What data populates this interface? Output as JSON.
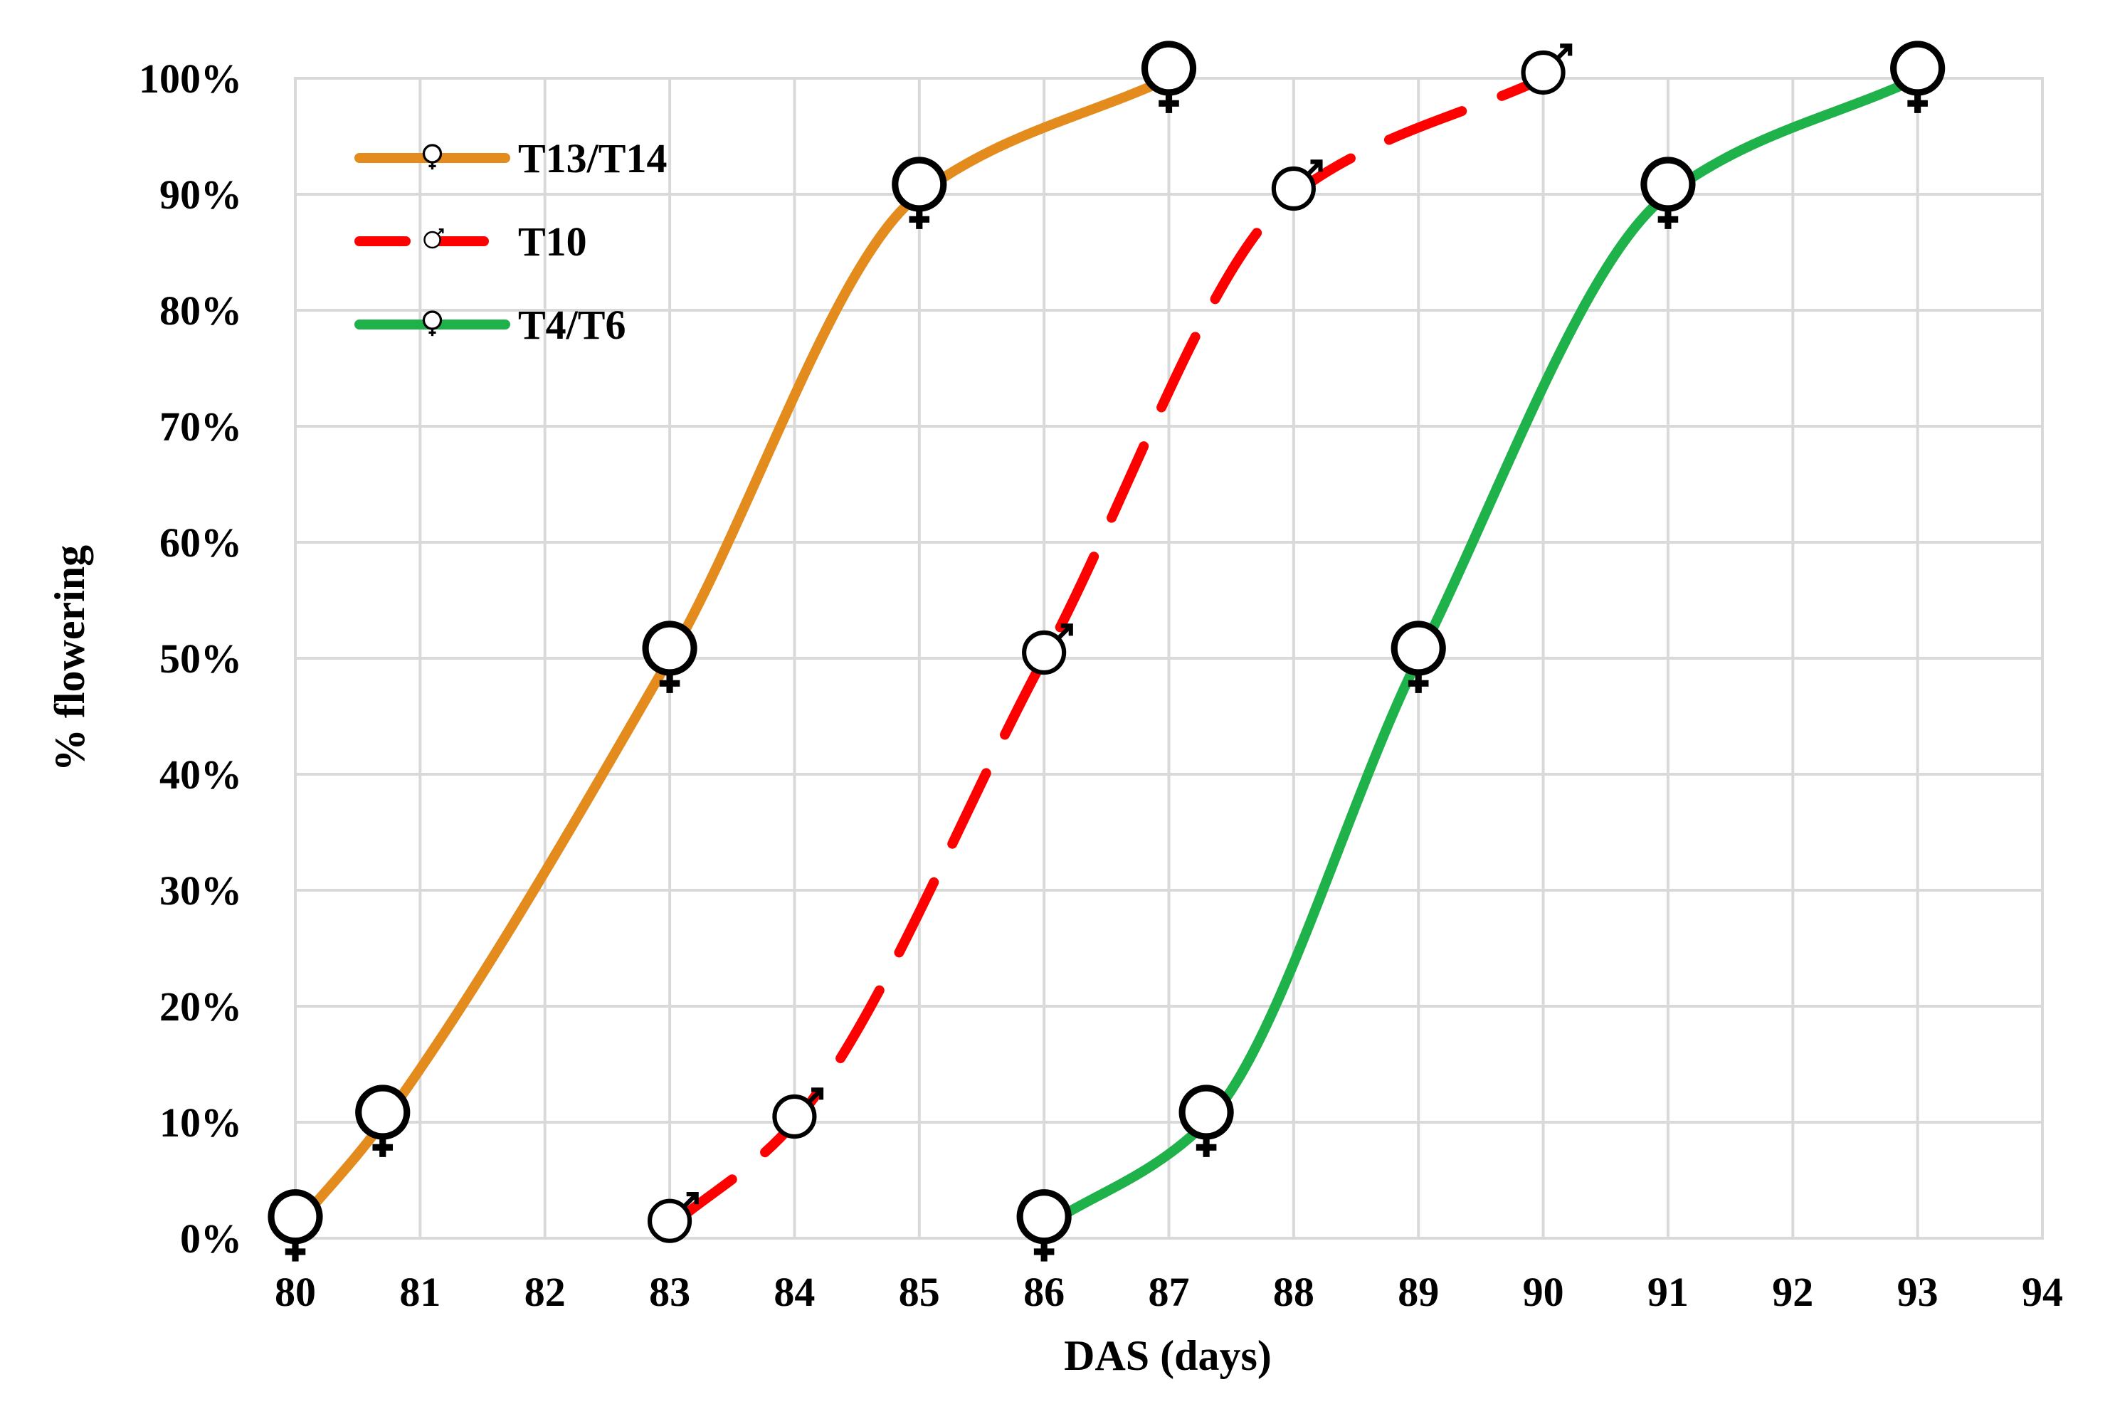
{
  "chart_data": {
    "type": "line",
    "xlabel": "DAS (days)",
    "ylabel": "% flowering",
    "xlim": [
      80,
      94
    ],
    "ylim": [
      0,
      100
    ],
    "x_ticks": [
      "80",
      "81",
      "82",
      "83",
      "84",
      "85",
      "86",
      "87",
      "88",
      "89",
      "90",
      "91",
      "92",
      "93",
      "94"
    ],
    "y_ticks": [
      "0%",
      "10%",
      "20%",
      "30%",
      "40%",
      "50%",
      "60%",
      "70%",
      "80%",
      "90%",
      "100%"
    ],
    "grid": true,
    "legend_position": "top-left",
    "series": [
      {
        "name": "T13/T14",
        "color": "#E38B1D",
        "line_style": "solid",
        "marker": "female-symbol-icon",
        "points": [
          {
            "x": 80,
            "y": 1
          },
          {
            "x": 80.7,
            "y": 10
          },
          {
            "x": 83,
            "y": 50
          },
          {
            "x": 85,
            "y": 90
          },
          {
            "x": 87,
            "y": 100
          }
        ]
      },
      {
        "name": "T10",
        "color": "#FF0000",
        "line_style": "dashed",
        "marker": "male-symbol-icon",
        "points": [
          {
            "x": 83,
            "y": 1
          },
          {
            "x": 84,
            "y": 10
          },
          {
            "x": 86,
            "y": 50
          },
          {
            "x": 88,
            "y": 90
          },
          {
            "x": 90,
            "y": 100
          }
        ]
      },
      {
        "name": "T4/T6",
        "color": "#1FB24A",
        "line_style": "solid",
        "marker": "female-symbol-icon",
        "points": [
          {
            "x": 86,
            "y": 1
          },
          {
            "x": 87.3,
            "y": 10
          },
          {
            "x": 89,
            "y": 50
          },
          {
            "x": 91,
            "y": 90
          },
          {
            "x": 93,
            "y": 100
          }
        ]
      }
    ]
  }
}
